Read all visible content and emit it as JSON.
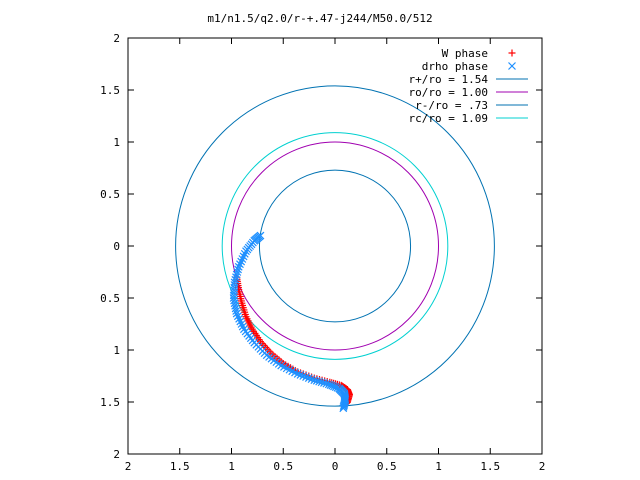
{
  "chart_data": {
    "type": "scatter",
    "title": "m1/n1.5/q2.0/r-+.47-j244/M50.0/512",
    "xlabel": "",
    "ylabel": "",
    "xlim": [
      -2,
      2
    ],
    "ylim": [
      -2,
      2
    ],
    "x_ticks": [
      -2,
      -1.5,
      -1,
      -0.5,
      0,
      0.5,
      1,
      1.5,
      2
    ],
    "x_tick_labels": [
      "2",
      "1.5",
      "1",
      "0.5",
      "0",
      "0.5",
      "1",
      "1.5",
      "2"
    ],
    "y_ticks": [
      2,
      1.5,
      1,
      0.5,
      0,
      -0.5,
      -1,
      -1.5,
      -2
    ],
    "y_tick_labels": [
      "2",
      "1.5",
      "1",
      "0.5",
      "0",
      "0.5",
      "1",
      "1.5",
      "2"
    ],
    "grid": false,
    "legend_position": "top-right",
    "circles": [
      {
        "name": "r+/ro = 1.54",
        "radius": 1.54,
        "color": "#0072b2"
      },
      {
        "name": "ro/ro = 1.00",
        "radius": 1.0,
        "color": "#a000b0"
      },
      {
        "name": "r-/ro = .73",
        "radius": 0.73,
        "color": "#0072b2"
      },
      {
        "name": "rc/ro = 1.09",
        "radius": 1.09,
        "color": "#00d0d0"
      }
    ],
    "series": [
      {
        "name": "W phase",
        "marker": "plus",
        "color": "#ff0000",
        "points": [
          [
            -0.95,
            -0.3
          ],
          [
            -0.93,
            -0.42
          ],
          [
            -0.9,
            -0.55
          ],
          [
            -0.86,
            -0.68
          ],
          [
            -0.8,
            -0.8
          ],
          [
            -0.72,
            -0.92
          ],
          [
            -0.62,
            -1.03
          ],
          [
            -0.5,
            -1.13
          ],
          [
            -0.36,
            -1.21
          ],
          [
            -0.2,
            -1.27
          ],
          [
            -0.05,
            -1.31
          ],
          [
            0.06,
            -1.34
          ],
          [
            0.12,
            -1.38
          ],
          [
            0.14,
            -1.43
          ],
          [
            0.12,
            -1.5
          ],
          [
            0.1,
            -1.52
          ]
        ]
      },
      {
        "name": "drho phase",
        "marker": "cross",
        "color": "#1e90ff",
        "points": [
          [
            -0.72,
            0.1
          ],
          [
            -0.78,
            0.05
          ],
          [
            -0.86,
            -0.05
          ],
          [
            -0.93,
            -0.2
          ],
          [
            -0.97,
            -0.35
          ],
          [
            -0.98,
            -0.5
          ],
          [
            -0.95,
            -0.65
          ],
          [
            -0.88,
            -0.8
          ],
          [
            -0.78,
            -0.93
          ],
          [
            -0.66,
            -1.05
          ],
          [
            -0.52,
            -1.15
          ],
          [
            -0.36,
            -1.23
          ],
          [
            -0.2,
            -1.29
          ],
          [
            -0.06,
            -1.33
          ],
          [
            0.04,
            -1.37
          ],
          [
            0.09,
            -1.42
          ],
          [
            0.1,
            -1.48
          ],
          [
            0.08,
            -1.56
          ]
        ]
      }
    ]
  }
}
